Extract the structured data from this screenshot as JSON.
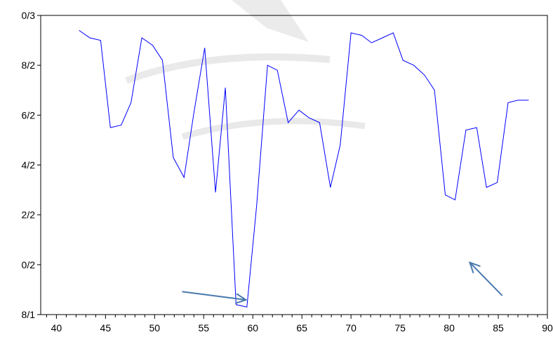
{
  "chart_data": {
    "type": "line",
    "title": "",
    "xlabel": "",
    "ylabel": "",
    "xlim": [
      38.4,
      90
    ],
    "ylim": [
      1.8,
      3.0
    ],
    "x_ticks": [
      40,
      45,
      50,
      55,
      60,
      65,
      70,
      75,
      80,
      85,
      90
    ],
    "x_tick_labels": [
      "40",
      "45",
      "50",
      "55",
      "60",
      "65",
      "70",
      "75",
      "80",
      "85",
      "90"
    ],
    "y_ticks": [
      1.8,
      2.0,
      2.2,
      2.4,
      2.6,
      2.8,
      3.0
    ],
    "y_tick_labels": [
      "8/1",
      "0/2",
      "2/2",
      "4/2",
      "6/2",
      "8/2",
      "0/3"
    ],
    "grid": false,
    "series": [
      {
        "color": "#0000ff",
        "x": [
          42.3,
          43.4,
          44.5,
          45.5,
          46.6,
          47.6,
          48.7,
          49.8,
          50.8,
          51.9,
          53.0,
          54.0,
          55.1,
          56.2,
          57.2,
          58.3,
          59.4,
          60.4,
          61.5,
          62.5,
          63.6,
          64.7,
          65.7,
          66.8,
          67.9,
          68.9,
          70.0,
          71.1,
          72.1,
          73.2,
          74.3,
          75.3,
          76.4,
          77.5,
          78.5,
          79.6,
          80.6,
          81.7,
          82.8,
          83.8,
          84.9,
          86.0,
          87.0,
          88.1
        ],
        "values": [
          2.94,
          2.91,
          2.9,
          2.55,
          2.56,
          2.65,
          2.91,
          2.88,
          2.82,
          2.43,
          2.35,
          2.61,
          2.87,
          2.29,
          2.71,
          1.84,
          1.83,
          2.24,
          2.8,
          2.78,
          2.57,
          2.62,
          2.59,
          2.57,
          2.31,
          2.48,
          2.93,
          2.92,
          2.89,
          2.91,
          2.93,
          2.82,
          2.8,
          2.76,
          2.7,
          2.28,
          2.26,
          2.54,
          2.55,
          2.31,
          2.33,
          2.65,
          2.66,
          2.66
        ]
      }
    ],
    "annotations": [
      {
        "type": "arrow",
        "color": "#4a7aad",
        "from": [
          52.8,
          1.892
        ],
        "to": [
          59.3,
          1.859
        ]
      },
      {
        "type": "arrow",
        "color": "#4a7aad",
        "from": [
          85.4,
          1.876
        ],
        "to": [
          82.1,
          2.009
        ]
      }
    ]
  }
}
